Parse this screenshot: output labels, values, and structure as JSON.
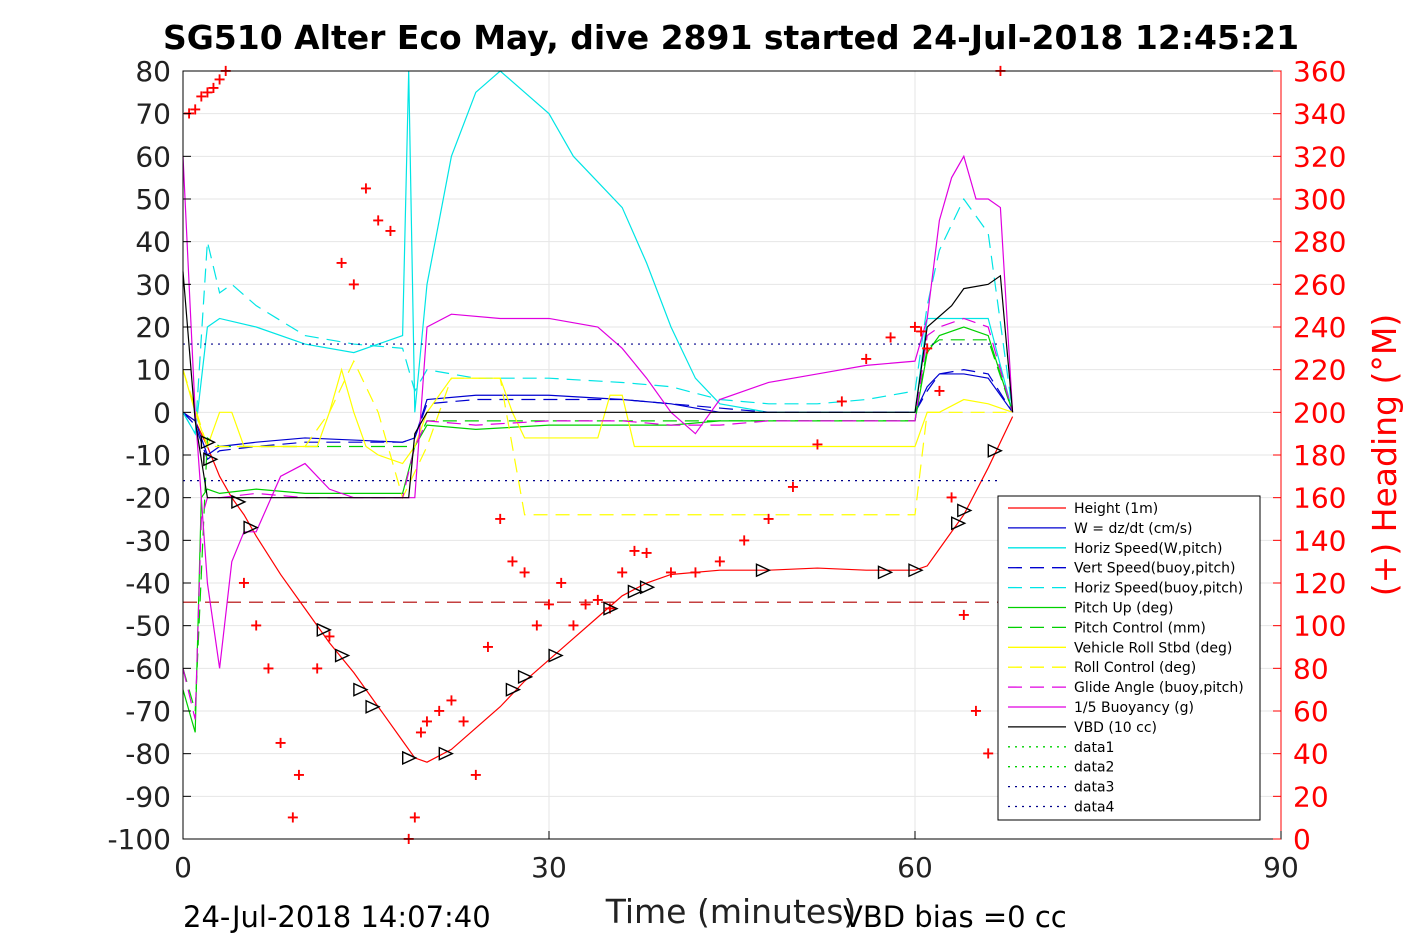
{
  "figure": {
    "title": "SG510 Alter Eco May, dive 2891 started 24-Jul-2018 12:45:21",
    "footer_left": "24-Jul-2018 14:07:40",
    "footer_right": "VBD bias =0 cc"
  },
  "chart_data": {
    "type": "line",
    "title": "SG510 Alter Eco May, dive 2891 started 24-Jul-2018 12:45:21",
    "xlabel": "Time (minutes)",
    "ylabel": "",
    "y2label": "(+) Heading (°M)",
    "xlim": [
      0,
      90
    ],
    "ylim": [
      -100,
      80
    ],
    "y2lim": [
      0,
      360
    ],
    "xticks": [
      0,
      30,
      60,
      90
    ],
    "yticks": [
      -100,
      -90,
      -80,
      -70,
      -60,
      -50,
      -40,
      -30,
      -20,
      -10,
      0,
      10,
      20,
      30,
      40,
      50,
      60,
      70,
      80
    ],
    "y2ticks": [
      0,
      20,
      40,
      60,
      80,
      100,
      120,
      140,
      160,
      180,
      200,
      220,
      240,
      260,
      280,
      300,
      320,
      340,
      360
    ],
    "grid": true,
    "legend_position": "bottom-right",
    "colors": {
      "axis": "#000000",
      "y2axis": "#ff0000",
      "grid": "#e6e6e6"
    },
    "series": [
      {
        "name": "Height (1m)",
        "color": "#ff0000",
        "style": "solid",
        "x": [
          0,
          1,
          2,
          3,
          4,
          5,
          6,
          8,
          10,
          12,
          14,
          16,
          18,
          19,
          20,
          22,
          24,
          26,
          28,
          30,
          32,
          34,
          36,
          38,
          40,
          44,
          48,
          52,
          56,
          60,
          61,
          62,
          64,
          66,
          68
        ],
        "y": [
          0,
          -2,
          -8,
          -15,
          -20,
          -24,
          -29,
          -38,
          -46,
          -54,
          -61,
          -69,
          -77,
          -81,
          -82,
          -79,
          -74,
          -69,
          -63,
          -58,
          -53,
          -48,
          -43,
          -40,
          -38,
          -37,
          -37,
          -36.5,
          -37,
          -37,
          -36,
          -32,
          -24,
          -13,
          -1
        ]
      },
      {
        "name": "W = dz/dt (cm/s)",
        "color": "#0000d0",
        "style": "solid",
        "x": [
          0,
          1,
          2,
          3,
          6,
          10,
          14,
          18,
          19,
          20,
          24,
          30,
          36,
          40,
          44,
          48,
          52,
          56,
          60,
          61,
          62,
          64,
          66,
          68
        ],
        "y": [
          0,
          -2,
          -10,
          -8,
          -7,
          -6,
          -6.5,
          -7,
          -6,
          3,
          4,
          4,
          3,
          2,
          0,
          0,
          0,
          0,
          0,
          6,
          9,
          9,
          8,
          0
        ]
      },
      {
        "name": "Horiz Speed(W,pitch)",
        "color": "#00e5e5",
        "style": "solid",
        "x": [
          0,
          1,
          2,
          3,
          6,
          10,
          14,
          18,
          18.5,
          19,
          20,
          22,
          24,
          26,
          28,
          30,
          32,
          36,
          38,
          40,
          42,
          44,
          48,
          52,
          56,
          60,
          61,
          62,
          64,
          66,
          68
        ],
        "y": [
          0,
          -5,
          20,
          22,
          20,
          16,
          14,
          18,
          80,
          0,
          30,
          60,
          75,
          80,
          75,
          70,
          60,
          48,
          35,
          20,
          8,
          2,
          0,
          0,
          0,
          0,
          22,
          22,
          22,
          22,
          0
        ]
      },
      {
        "name": "Vert Speed(buoy,pitch)",
        "color": "#0000d0",
        "style": "dashed",
        "x": [
          0,
          1,
          2,
          3,
          6,
          10,
          14,
          18,
          19,
          20,
          24,
          30,
          36,
          40,
          44,
          48,
          52,
          56,
          60,
          61,
          62,
          64,
          66,
          68
        ],
        "y": [
          0,
          -3,
          -11,
          -9,
          -8,
          -7,
          -7,
          -7,
          -6,
          2,
          3,
          3,
          3,
          2,
          1,
          0,
          0,
          0,
          0,
          5,
          9,
          10,
          9,
          0
        ]
      },
      {
        "name": "Horiz Speed(buoy,pitch)",
        "color": "#00e5e5",
        "style": "dashed",
        "x": [
          0,
          1,
          2,
          3,
          4,
          6,
          10,
          14,
          18,
          19,
          20,
          24,
          30,
          36,
          40,
          44,
          48,
          52,
          56,
          60,
          61,
          62,
          64,
          66,
          68
        ],
        "y": [
          0,
          -5,
          40,
          28,
          30,
          25,
          18,
          16,
          15,
          5,
          10,
          8,
          8,
          7,
          6,
          3,
          2,
          2,
          3,
          5,
          25,
          38,
          50,
          42,
          0
        ]
      },
      {
        "name": "Pitch Up (deg)",
        "color": "#00d000",
        "style": "solid",
        "x": [
          0,
          1,
          1.5,
          2,
          3,
          6,
          10,
          14,
          18,
          19,
          20,
          24,
          30,
          36,
          40,
          44,
          48,
          52,
          56,
          60,
          61,
          62,
          64,
          66,
          68
        ],
        "y": [
          -65,
          -75,
          -20,
          -18,
          -19,
          -18,
          -19,
          -19,
          -19,
          -8,
          -3,
          -4,
          -3,
          -3,
          -3,
          -2,
          -2,
          -2,
          -2,
          -2,
          14,
          18,
          20,
          18,
          0
        ]
      },
      {
        "name": "Pitch Control (mm)",
        "color": "#00d000",
        "style": "dashed",
        "x": [
          0,
          1,
          2,
          3,
          10,
          18,
          19,
          20,
          30,
          40,
          50,
          60,
          61,
          62,
          64,
          66,
          68
        ],
        "y": [
          -60,
          -70,
          -6,
          -8,
          -8,
          -8,
          -8,
          -2,
          -2,
          -2,
          -2,
          -2,
          15,
          17,
          17,
          17,
          0
        ]
      },
      {
        "name": "Vehicle Roll Stbd (deg)",
        "color": "#ffff00",
        "style": "solid",
        "x": [
          0,
          1,
          2,
          3,
          4,
          5,
          6,
          8,
          11,
          12,
          13,
          14,
          15,
          16,
          18,
          19,
          20,
          22,
          26,
          27,
          28,
          34,
          35,
          36,
          37,
          38,
          44,
          48,
          52,
          56,
          60,
          61,
          62,
          64,
          66,
          68
        ],
        "y": [
          10,
          0,
          -8,
          0,
          0,
          -8,
          -8,
          -8,
          -8,
          0,
          10,
          0,
          -8,
          -10,
          -12,
          -8,
          0,
          8,
          8,
          0,
          -6,
          -6,
          4,
          4,
          -8,
          -8,
          -8,
          -8,
          -8,
          -8,
          -8,
          0,
          0,
          3,
          2,
          0
        ]
      },
      {
        "name": "Roll Control (deg)",
        "color": "#ffff00",
        "style": "dashed",
        "x": [
          0,
          2,
          4,
          6,
          10,
          12,
          14,
          16,
          18,
          20,
          22,
          26,
          28,
          34,
          36,
          38,
          44,
          48,
          52,
          56,
          60,
          61,
          62,
          64,
          66,
          68
        ],
        "y": [
          10,
          -8,
          -8,
          -8,
          -8,
          0,
          12,
          0,
          -20,
          -8,
          8,
          8,
          -24,
          -24,
          -24,
          -24,
          -24,
          -24,
          -24,
          -24,
          -24,
          0,
          0,
          0,
          0,
          0
        ]
      },
      {
        "name": "Glide Angle (buoy,pitch)",
        "color": "#e000e0",
        "style": "dashed",
        "x": [
          0,
          1,
          1.5,
          2,
          3,
          6,
          10,
          14,
          18,
          19,
          20,
          24,
          30,
          36,
          40,
          44,
          48,
          52,
          56,
          60,
          61,
          62,
          64,
          66,
          68
        ],
        "y": [
          -60,
          -72,
          -25,
          -20,
          -20,
          -19,
          -20,
          -20,
          -20,
          -8,
          -2,
          -3,
          -2,
          -2,
          -3,
          -3,
          -2,
          -2,
          -2,
          -2,
          18,
          20,
          22,
          20,
          0
        ]
      },
      {
        "name": "1/5 Buoyancy (g)",
        "color": "#e000e0",
        "style": "solid",
        "x": [
          0,
          1,
          2,
          3,
          4,
          5,
          6,
          8,
          10,
          12,
          14,
          16,
          18,
          19,
          20,
          22,
          26,
          30,
          34,
          36,
          38,
          40,
          42,
          44,
          48,
          52,
          56,
          60,
          61,
          62,
          63,
          64,
          65,
          66,
          67,
          68
        ],
        "y": [
          60,
          0,
          -40,
          -60,
          -35,
          -28,
          -28,
          -15,
          -12,
          -18,
          -20,
          -20,
          -20,
          -20,
          20,
          23,
          22,
          22,
          20,
          15,
          8,
          0,
          -5,
          3,
          7,
          9,
          11,
          12,
          22,
          45,
          55,
          60,
          50,
          50,
          48,
          0
        ]
      },
      {
        "name": "VBD (10 cc)",
        "color": "#000000",
        "style": "solid",
        "x": [
          0,
          1,
          2,
          18,
          18.5,
          19,
          20,
          40,
          60,
          61,
          63,
          64,
          66,
          67,
          68
        ],
        "y": [
          33,
          -2,
          -20,
          -20,
          -20,
          -5,
          0,
          0,
          0,
          20,
          25,
          29,
          30,
          32,
          0
        ]
      },
      {
        "name": "data1",
        "color": "#00d000",
        "style": "dotted",
        "x": [],
        "y": []
      },
      {
        "name": "data2",
        "color": "#00d000",
        "style": "dotted",
        "x": [],
        "y": []
      },
      {
        "name": "data3",
        "color": "#00008b",
        "style": "dotted",
        "x": [
          0,
          67
        ],
        "y": [
          -16,
          -16
        ]
      },
      {
        "name": "data4",
        "color": "#00008b",
        "style": "dotted",
        "x": [
          0,
          67
        ],
        "y": [
          16,
          16
        ]
      }
    ],
    "reference_lines": [
      {
        "color": "#b00000",
        "style": "dashed",
        "x": [
          0,
          67
        ],
        "y": [
          -44.5,
          -44.5
        ]
      }
    ],
    "heading_markers": {
      "marker": "+",
      "color": "#ff0000",
      "axis": "right",
      "x": [
        0.5,
        1,
        1.5,
        2,
        2.5,
        3,
        3.5,
        5,
        6,
        7,
        8,
        9,
        9.5,
        11,
        12,
        13,
        14,
        15,
        16,
        17,
        18.5,
        19,
        19.5,
        20,
        21,
        22,
        23,
        24,
        25,
        26,
        27,
        28,
        29,
        30,
        31,
        32,
        33,
        34,
        35,
        36,
        37,
        38,
        40,
        42,
        44,
        46,
        48,
        50,
        52,
        54,
        56,
        58,
        60,
        60.5,
        61,
        62,
        63,
        64,
        65,
        66,
        67
      ],
      "y": [
        340,
        342,
        348,
        350,
        352,
        356,
        360,
        120,
        100,
        80,
        45,
        10,
        30,
        80,
        95,
        270,
        260,
        305,
        290,
        285,
        0,
        10,
        50,
        55,
        60,
        65,
        55,
        30,
        90,
        150,
        130,
        125,
        100,
        110,
        120,
        100,
        110,
        112,
        108,
        125,
        135,
        134,
        125,
        125,
        130,
        140,
        150,
        165,
        185,
        205,
        225,
        235,
        240,
        238,
        230,
        210,
        160,
        105,
        60,
        40,
        360
      ]
    },
    "triangle_markers": {
      "color": "#000000",
      "x": [
        2,
        2.2,
        4.5,
        5.5,
        11.5,
        13,
        14.5,
        15.5,
        18.5,
        21.5,
        27,
        28,
        30.5,
        35,
        37,
        38,
        47.5,
        57.5,
        60,
        63.5,
        64,
        66.5
      ],
      "y": [
        -7,
        -11,
        -21,
        -27,
        -51,
        -57,
        -65,
        -69,
        -81,
        -80,
        -65,
        -62,
        -57,
        -46,
        -42,
        -41,
        -37,
        -37.5,
        -37,
        -26,
        -23,
        -9
      ]
    }
  }
}
